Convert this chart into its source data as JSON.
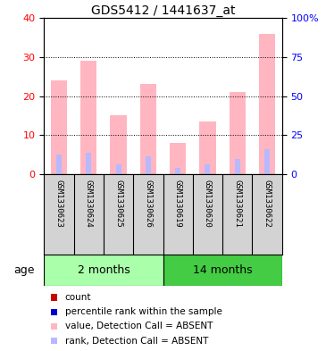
{
  "title": "GDS5412 / 1441637_at",
  "samples": [
    "GSM1330623",
    "GSM1330624",
    "GSM1330625",
    "GSM1330626",
    "GSM1330619",
    "GSM1330620",
    "GSM1330621",
    "GSM1330622"
  ],
  "value_absent": [
    24.0,
    29.0,
    15.0,
    23.0,
    8.0,
    13.5,
    21.0,
    36.0
  ],
  "rank_absent": [
    5.0,
    5.5,
    2.5,
    4.5,
    1.5,
    2.5,
    4.0,
    6.5
  ],
  "ylim_left": [
    0,
    40
  ],
  "ylim_right": [
    0,
    100
  ],
  "yticks_left": [
    0,
    10,
    20,
    30,
    40
  ],
  "yticks_right": [
    0,
    25,
    50,
    75,
    100
  ],
  "yticklabels_right": [
    "0",
    "25",
    "50",
    "75",
    "100%"
  ],
  "color_value_absent": "#FFB6C1",
  "color_rank_absent": "#B8B8FF",
  "color_count": "#CC0000",
  "color_percentile": "#0000CC",
  "bg_sample": "#D3D3D3",
  "group1_color": "#AAFFAA",
  "group2_color": "#44CC44",
  "group1_label": "2 months",
  "group2_label": "14 months",
  "age_label": "age",
  "legend_items": [
    {
      "color": "#CC0000",
      "label": "count"
    },
    {
      "color": "#0000CC",
      "label": "percentile rank within the sample"
    },
    {
      "color": "#FFB6C1",
      "label": "value, Detection Call = ABSENT"
    },
    {
      "color": "#B8B8FF",
      "label": "rank, Detection Call = ABSENT"
    }
  ],
  "pink_bar_width": 0.55,
  "blue_bar_width": 0.18
}
